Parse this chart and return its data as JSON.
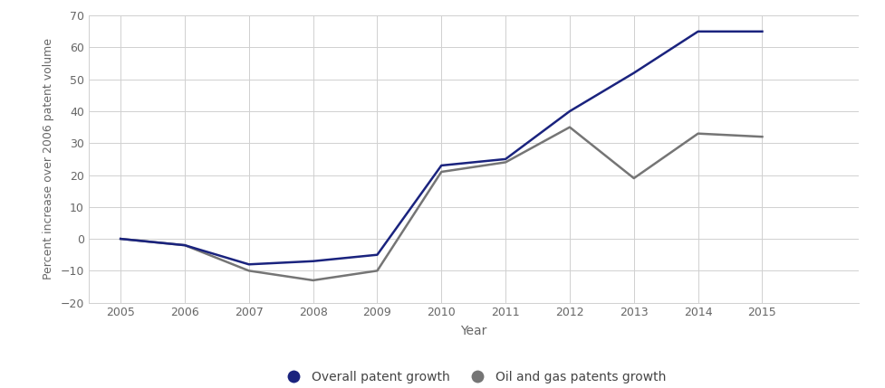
{
  "years": [
    2005,
    2006,
    2007,
    2008,
    2009,
    2010,
    2011,
    2012,
    2013,
    2014,
    2015
  ],
  "overall_growth": [
    0,
    -2,
    -8,
    -7,
    -5,
    23,
    25,
    40,
    52,
    65,
    65
  ],
  "oil_gas_growth": [
    0,
    -2,
    -10,
    -13,
    -10,
    21,
    24,
    35,
    19,
    33,
    32
  ],
  "overall_color": "#1a237e",
  "oil_gas_color": "#757575",
  "overall_label": "Overall patent growth",
  "oil_gas_label": "Oil and gas patents growth",
  "xlabel": "Year",
  "ylabel": "Percent increase over 2006 patent volume",
  "ylim": [
    -20,
    70
  ],
  "xlim": [
    2004.5,
    2016.5
  ],
  "yticks": [
    -20,
    -10,
    0,
    10,
    20,
    30,
    40,
    50,
    60,
    70
  ],
  "xticks": [
    2005,
    2006,
    2007,
    2008,
    2009,
    2010,
    2011,
    2012,
    2013,
    2014,
    2015
  ],
  "background_color": "#ffffff",
  "grid_color": "#d0d0d0",
  "line_width": 1.8,
  "legend_marker_size": 11,
  "tick_fontsize": 9,
  "label_fontsize": 9,
  "xlabel_fontsize": 10
}
